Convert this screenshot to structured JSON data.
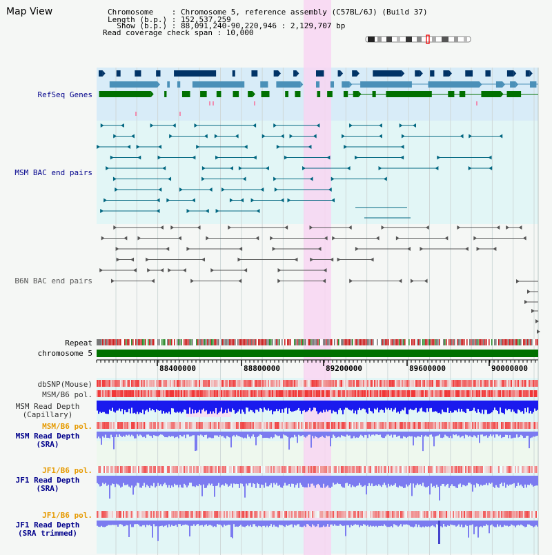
{
  "title": "Map View",
  "header": {
    "chromosome_line": "Chromosome    : Chromosome 5, reference assembly (C57BL/6J) (Build 37)",
    "length_line": "Length (b.p.) : 152,537,259",
    "show_line": "  Show (b.p.) : 88,091,240-90,220,946 : 2,129,707 bp",
    "span_line": "Read coverage check span : 10,000"
  },
  "tracks": {
    "refseq": "RefSeq Genes",
    "msm_bac": "MSM BAC end pairs",
    "b6n_bac": "B6N BAC end pairs",
    "repeat": "Repeat",
    "chromosome": "chromosome 5",
    "dbsnp": "dbSNP(Mouse)",
    "msm_b6_pol_1": "MSM/B6 pol.",
    "msm_depth_cap_1": "MSM Read Depth",
    "msm_depth_cap_2": "(Capillary)",
    "msm_b6_pol_2": "MSM/B6 pol.",
    "msm_depth_sra_1": "MSM Read Depth",
    "msm_depth_sra_2": "(SRA)",
    "jf1_b6_pol_1": "JF1/B6 pol.",
    "jf1_depth_sra_1": "JF1 Read Depth",
    "jf1_depth_sra_2": "(SRA)",
    "jf1_b6_pol_2": "JF1/B6 pol.",
    "jf1_depth_trim_1": "JF1 Read Depth",
    "jf1_depth_trim_2": "(SRA trimmed)"
  },
  "axis": {
    "ticks": [
      "88400000",
      "88800000",
      "89200000",
      "89600000",
      "90000000"
    ]
  },
  "colors": {
    "refseq_bg": "#d8ecf8",
    "msm_bg": "#e2f6f6",
    "b6n_bg": "#f2f4f2",
    "highlight": "#f8d6f2",
    "gene_dark": "#003366",
    "gene_mid": "#4a90b8",
    "gene_green": "#007000",
    "msm_line": "#006680",
    "b6n_line": "#555555",
    "chromosome_bar": "#007000",
    "label_blue": "#00008b",
    "label_orange": "#e69a00",
    "depth_blue": "#1a1aee",
    "depth_light": "#7b7bf0"
  }
}
